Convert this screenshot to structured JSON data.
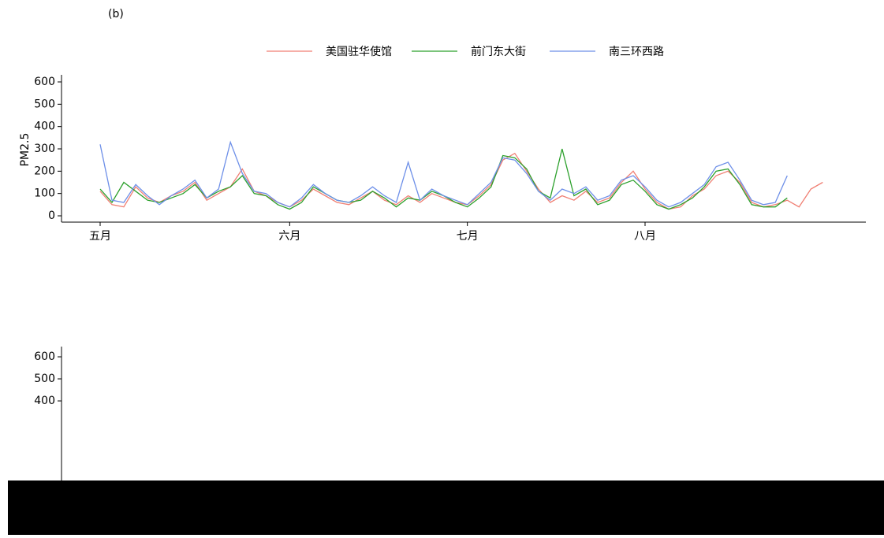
{
  "label": "(b)",
  "chart_data": [
    {
      "type": "line",
      "ylabel": "PM2.5",
      "categories": [
        "五月",
        null,
        null,
        null,
        null,
        null,
        null,
        null,
        null,
        null,
        null,
        null,
        null,
        null,
        null,
        null,
        "六月",
        null,
        null,
        null,
        null,
        null,
        null,
        null,
        null,
        null,
        null,
        null,
        null,
        null,
        null,
        "七月",
        null,
        null,
        null,
        null,
        null,
        null,
        null,
        null,
        null,
        null,
        null,
        null,
        null,
        null,
        "八月",
        null,
        null,
        null,
        null,
        null,
        null,
        null,
        null,
        null,
        null,
        null,
        null,
        null,
        null,
        null
      ],
      "series": [
        {
          "name": "美国驻华使馆",
          "color": "#f07f73",
          "values": [
            110,
            50,
            40,
            130,
            80,
            60,
            90,
            110,
            150,
            70,
            100,
            130,
            210,
            110,
            90,
            60,
            40,
            70,
            120,
            90,
            60,
            50,
            80,
            110,
            70,
            50,
            90,
            60,
            100,
            80,
            60,
            50,
            90,
            140,
            250,
            280,
            200,
            120,
            60,
            90,
            70,
            110,
            60,
            80,
            150,
            200,
            120,
            60,
            30,
            40,
            90,
            120,
            180,
            200,
            150,
            60,
            40,
            50,
            70,
            40,
            120,
            150
          ]
        },
        {
          "name": "前门东大街",
          "color": "#2ca02c",
          "values": [
            120,
            60,
            150,
            110,
            70,
            60,
            80,
            100,
            140,
            80,
            110,
            130,
            180,
            100,
            90,
            50,
            30,
            60,
            130,
            100,
            70,
            60,
            70,
            110,
            80,
            40,
            80,
            70,
            110,
            90,
            60,
            40,
            80,
            130,
            270,
            260,
            210,
            110,
            80,
            300,
            90,
            120,
            50,
            70,
            140,
            160,
            110,
            50,
            30,
            50,
            80,
            130,
            200,
            210,
            140,
            50,
            40,
            40,
            80,
            null,
            null,
            null
          ]
        },
        {
          "name": "南三环西路",
          "color": "#6d8fe8",
          "values": [
            320,
            70,
            60,
            140,
            90,
            50,
            90,
            120,
            160,
            80,
            120,
            330,
            190,
            110,
            100,
            60,
            40,
            80,
            140,
            100,
            70,
            60,
            90,
            130,
            90,
            60,
            240,
            70,
            120,
            90,
            70,
            50,
            100,
            150,
            260,
            250,
            190,
            110,
            70,
            120,
            100,
            130,
            70,
            90,
            160,
            180,
            130,
            70,
            40,
            60,
            100,
            140,
            220,
            240,
            160,
            70,
            50,
            60,
            180,
            null,
            null,
            null
          ]
        }
      ],
      "ylim": [
        0,
        600
      ],
      "yticks": [
        0,
        100,
        200,
        300,
        400,
        500,
        600
      ]
    },
    {
      "type": "line",
      "ylim": [
        0,
        600
      ],
      "yticks": [
        400,
        500,
        600
      ]
    }
  ]
}
